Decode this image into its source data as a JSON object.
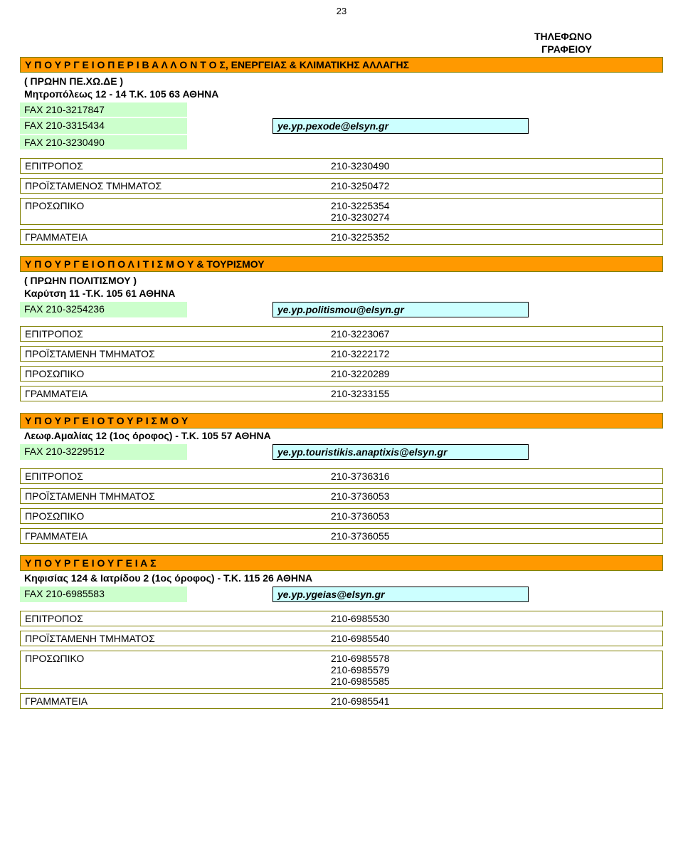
{
  "page_number": "23",
  "column_header": "ΤΗΛΕΦΩΝΟ\nΓΡΑΦΕΙΟΥ",
  "colors": {
    "section_bg": "#ff9900",
    "section_border": "#808000",
    "row_border": "#808000",
    "fax_bg": "#ccffcc",
    "email_bg": "#ccffff",
    "text": "#000000",
    "page_bg": "#ffffff"
  },
  "labels": {
    "epitropos": "ΕΠΙΤΡΟΠΟΣ",
    "proistamenos": "ΠΡΟΪΣΤΑΜΕΝΟΣ  ΤΜΗΜΑΤΟΣ",
    "proistameni": "ΠΡΟΪΣΤΑΜΕΝΗ ΤΜΗΜΑΤΟΣ",
    "prosopiko": "ΠΡΟΣΩΠΙΚΟ",
    "grammateia": "ΓΡΑΜΜΑΤΕΙΑ"
  },
  "sections": [
    {
      "title": "Υ Π Ο Υ Ρ Γ Ε Ι Ο   Π Ε Ρ Ι Β Α Λ Λ Ο Ν Τ Ο Σ,  ΕΝΕΡΓΕΙΑΣ & ΚΛΙΜΑΤΙΚΗΣ ΑΛΛΑΓΗΣ",
      "subtitle": "( ΠΡΩΗΝ  ΠΕ.ΧΩ.ΔΕ )",
      "address": "Μητροπόλεως 12 - 14  Τ.Κ. 105 63 ΑΘΗΝΑ",
      "faxes_pre": [
        "FAX 210-3217847"
      ],
      "fax_with_email": "FAX 210-3315434",
      "email": "ye.yp.pexode@elsyn.gr",
      "faxes_post": [
        "FAX 210-3230490"
      ],
      "rows": [
        {
          "label_key": "epitropos",
          "value": "210-3230490"
        },
        {
          "label_key": "proistamenos",
          "value": "210-3250472"
        },
        {
          "label_key": "prosopiko",
          "value": "210-3225354\n210-3230274"
        },
        {
          "label_key": "grammateia",
          "value": "210-3225352"
        }
      ]
    },
    {
      "title": "Υ Π Ο Υ Ρ Γ Ε Ι Ο    Π Ο Λ Ι Τ Ι Σ Μ Ο Υ  &  ΤΟΥΡΙΣΜΟΥ",
      "subtitle": "( ΠΡΩΗΝ  ΠΟΛΙΤΙΣΜΟΥ )",
      "address": "Καρύτση 11 -Τ.Κ. 105 61 ΑΘΗΝΑ",
      "faxes_pre": [],
      "fax_with_email": "FAX   210-3254236",
      "email": "ye.yp.politismou@elsyn.gr",
      "faxes_post": [],
      "rows": [
        {
          "label_key": "epitropos",
          "value": "210-3223067"
        },
        {
          "label_key": "proistameni",
          "value": "210-3222172"
        },
        {
          "label_key": "prosopiko",
          "value": "210-3220289"
        },
        {
          "label_key": "grammateia",
          "value": "210-3233155"
        }
      ]
    },
    {
      "title": "Υ Π Ο Υ Ρ Γ Ε Ι Ο    Τ Ο Υ Ρ Ι Σ Μ Ο Υ",
      "subtitle": "",
      "address": "Λεωφ.Αμαλίας 12 (1ος όροφος) -  Τ.Κ. 105 57 ΑΘΗΝΑ",
      "faxes_pre": [],
      "fax_with_email": "FAX   210-3229512",
      "email": "ye.yp.touristikis.anaptixis@elsyn.gr",
      "faxes_post": [],
      "rows": [
        {
          "label_key": "epitropos",
          "value": "210-3736316"
        },
        {
          "label_key": "proistameni",
          "value": "210-3736053"
        },
        {
          "label_key": "prosopiko",
          "value": "210-3736053"
        },
        {
          "label_key": "grammateia",
          "value": "210-3736055"
        }
      ]
    },
    {
      "title": "Υ Π Ο Υ Ρ Γ Ε Ι Ο   Υ Γ Ε Ι Α Σ",
      "subtitle": "",
      "address": "Κηφισίας 124 & Ιατρίδου 2  (1ος όροφος) - Τ.Κ. 115 26  ΑΘΗΝΑ",
      "faxes_pre": [],
      "fax_with_email": "FAX  210-6985583",
      "email": "ye.yp.ygeias@elsyn.gr",
      "faxes_post": [],
      "rows": [
        {
          "label_key": "epitropos",
          "value": "210-6985530"
        },
        {
          "label_key": "proistameni",
          "value": "210-6985540"
        },
        {
          "label_key": "prosopiko",
          "value": "210-6985578\n210-6985579\n210-6985585"
        },
        {
          "label_key": "grammateia",
          "value": "210-6985541"
        }
      ]
    }
  ]
}
